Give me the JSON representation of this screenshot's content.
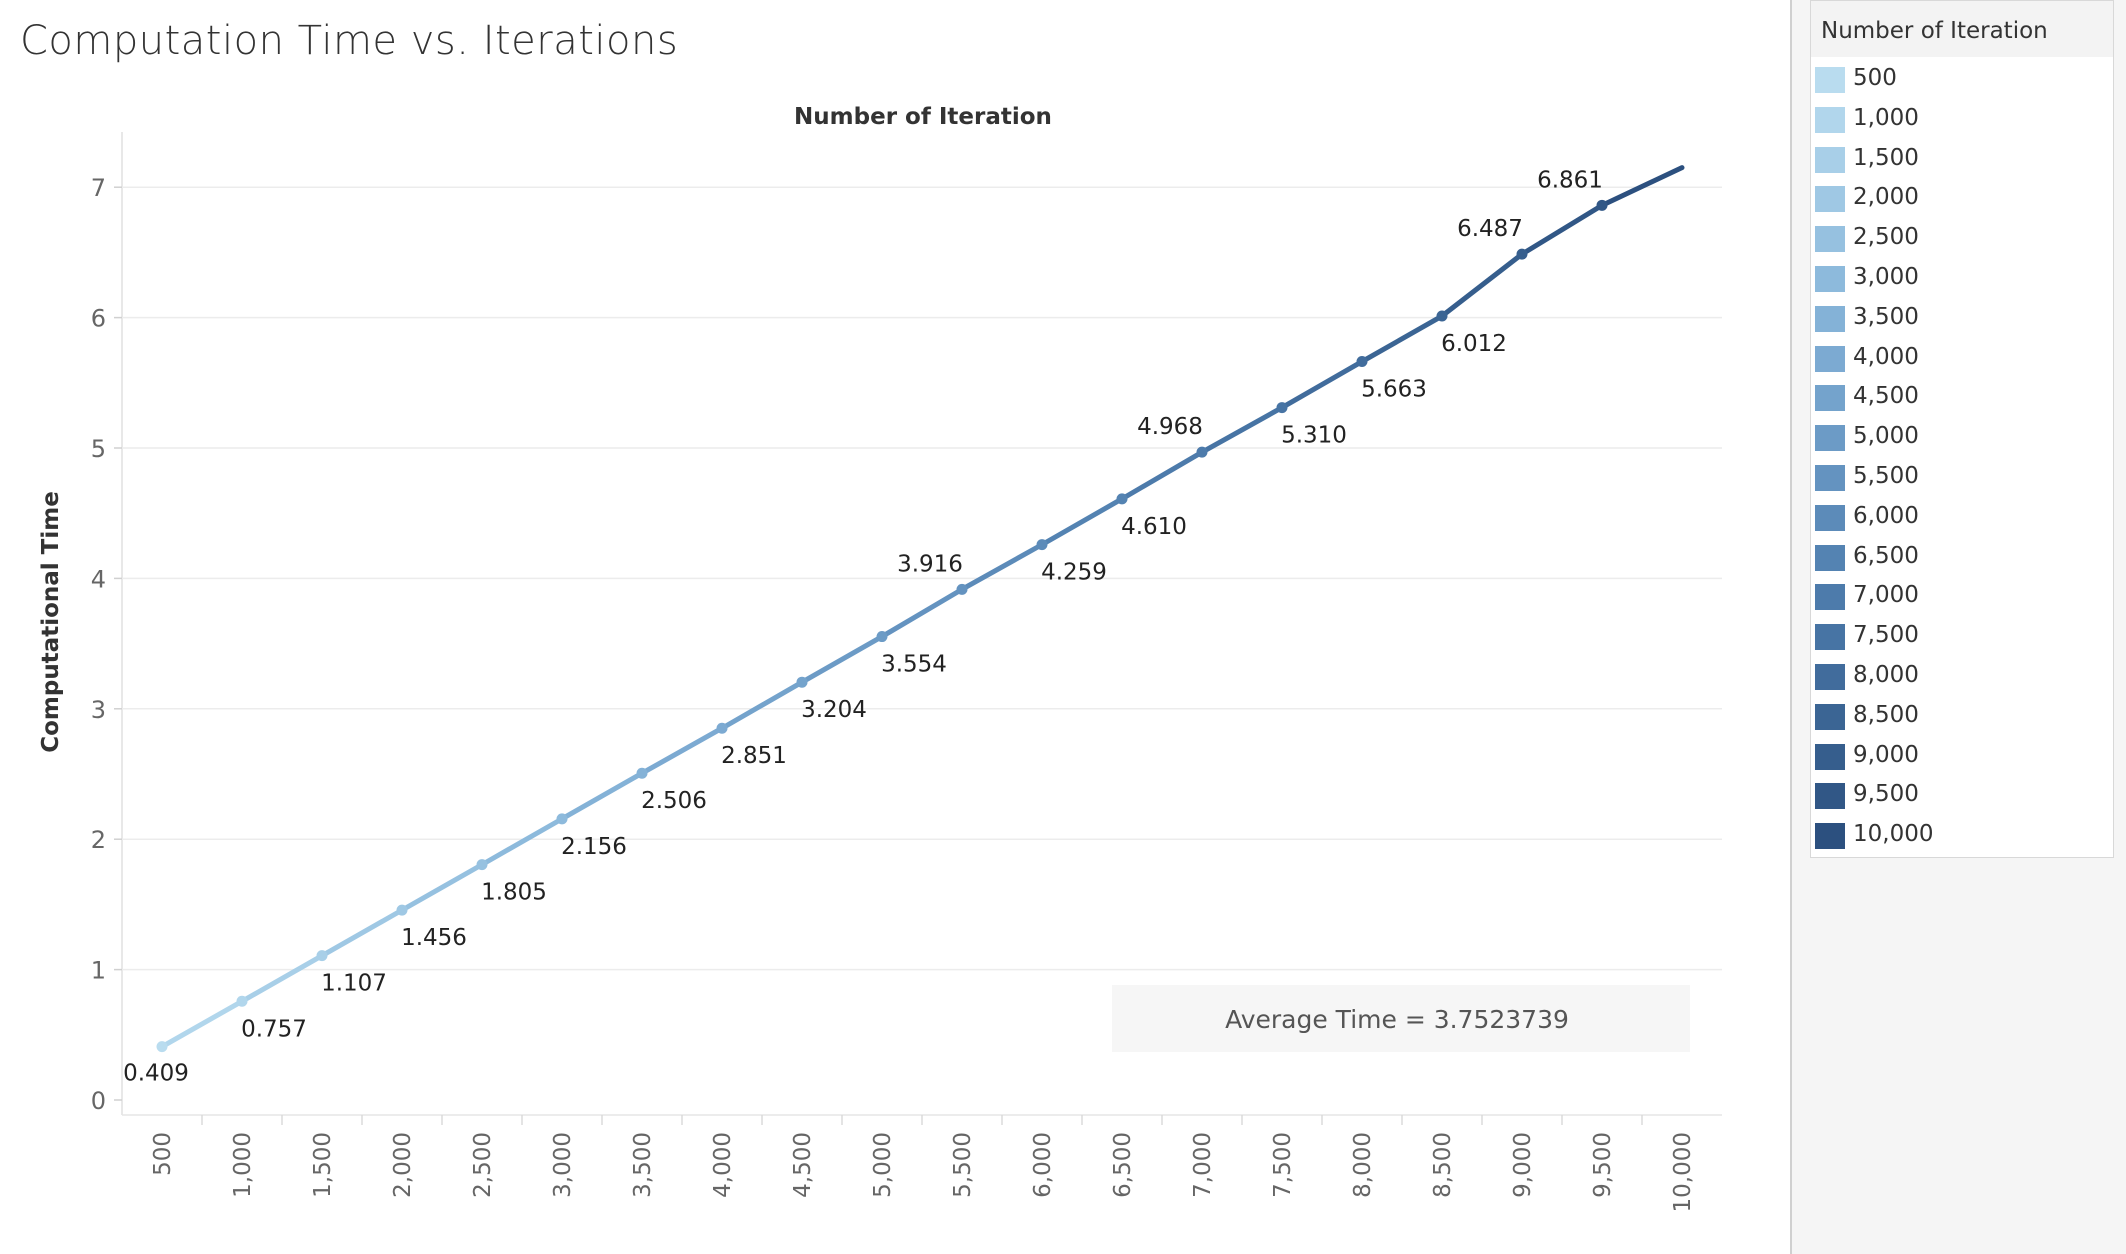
{
  "title": "Computation Time vs. Iterations",
  "chart_data": {
    "type": "line",
    "title": "Number of Iteration",
    "xlabel": "",
    "ylabel": "Computational Time",
    "categories": [
      "500",
      "1,000",
      "1,500",
      "2,000",
      "2,500",
      "3,000",
      "3,500",
      "4,000",
      "4,500",
      "5,000",
      "5,500",
      "6,000",
      "6,500",
      "7,000",
      "7,500",
      "8,000",
      "8,500",
      "9,000",
      "9,500",
      "10,000"
    ],
    "values": [
      0.409,
      0.757,
      1.107,
      1.456,
      1.805,
      2.156,
      2.506,
      2.851,
      3.204,
      3.554,
      3.916,
      4.259,
      4.61,
      4.968,
      5.31,
      5.663,
      6.012,
      6.487,
      6.861,
      7.15
    ],
    "data_labels": [
      "0.409",
      "0.757",
      "1.107",
      "1.456",
      "1.805",
      "2.156",
      "2.506",
      "2.851",
      "3.204",
      "3.554",
      "3.916",
      "4.259",
      "4.610",
      "4.968",
      "5.310",
      "5.663",
      "6.012",
      "6.487",
      "6.861",
      ""
    ],
    "ylim": [
      0,
      7.5
    ],
    "yticks": [
      0,
      1,
      2,
      3,
      4,
      5,
      6,
      7
    ],
    "grid": true,
    "legend": "right",
    "annotation": "Average Time = 3.7523739"
  },
  "legend": {
    "title": "Number of Iteration",
    "items": [
      {
        "label": "500",
        "color": "#b9dcef"
      },
      {
        "label": "1,000",
        "color": "#b1d6ec"
      },
      {
        "label": "1,500",
        "color": "#a8cfe8"
      },
      {
        "label": "2,000",
        "color": "#9fc8e4"
      },
      {
        "label": "2,500",
        "color": "#96c1e0"
      },
      {
        "label": "3,000",
        "color": "#8dbadc"
      },
      {
        "label": "3,500",
        "color": "#84b2d7"
      },
      {
        "label": "4,000",
        "color": "#7caad2"
      },
      {
        "label": "4,500",
        "color": "#74a3cc"
      },
      {
        "label": "5,000",
        "color": "#6c9bc6"
      },
      {
        "label": "5,500",
        "color": "#6493c0"
      },
      {
        "label": "6,000",
        "color": "#5c8bb9"
      },
      {
        "label": "6,500",
        "color": "#5483b2"
      },
      {
        "label": "7,000",
        "color": "#4d7bab"
      },
      {
        "label": "7,500",
        "color": "#4774a4"
      },
      {
        "label": "8,000",
        "color": "#416c9c"
      },
      {
        "label": "8,500",
        "color": "#3b6594"
      },
      {
        "label": "9,000",
        "color": "#365e8d"
      },
      {
        "label": "9,500",
        "color": "#315786"
      },
      {
        "label": "10,000",
        "color": "#2c507f"
      }
    ]
  }
}
